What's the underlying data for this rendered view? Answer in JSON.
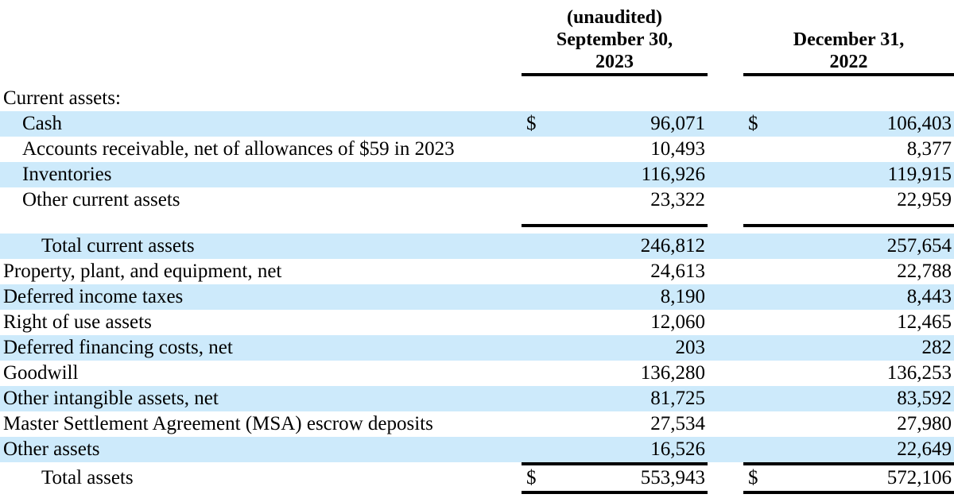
{
  "document": {
    "kind": "balance-sheet-assets-table",
    "unaudited_note": "(unaudited)",
    "currency_symbol": "$",
    "columns": [
      {
        "id": "sep30_2023",
        "line1": "September 30,",
        "line2": "2023"
      },
      {
        "id": "dec31_2022",
        "line1": "December 31,",
        "line2": "2022"
      }
    ],
    "rows": [
      {
        "style": "section",
        "label": "Current assets:",
        "indent": 0,
        "highlight": false,
        "show_dollar": false,
        "sep30_2023": "",
        "dec31_2022": ""
      },
      {
        "style": "normal",
        "label": "Cash",
        "indent": 1,
        "highlight": true,
        "show_dollar": true,
        "sep30_2023": "96,071",
        "dec31_2022": "106,403"
      },
      {
        "style": "normal",
        "label": "Accounts receivable, net of allowances of $59 in 2023",
        "indent": 1,
        "highlight": false,
        "show_dollar": false,
        "sep30_2023": "10,493",
        "dec31_2022": "8,377"
      },
      {
        "style": "normal",
        "label": "Inventories",
        "indent": 1,
        "highlight": true,
        "show_dollar": false,
        "sep30_2023": "116,926",
        "dec31_2022": "119,915"
      },
      {
        "style": "normal",
        "label": "Other current assets",
        "indent": 1,
        "highlight": false,
        "show_dollar": false,
        "sep30_2023": "23,322",
        "dec31_2022": "22,959"
      },
      {
        "style": "rule-spacer"
      },
      {
        "style": "subtotal",
        "label": "Total current assets",
        "indent": 2,
        "highlight": true,
        "show_dollar": false,
        "sep30_2023": "246,812",
        "dec31_2022": "257,654"
      },
      {
        "style": "normal",
        "label": "Property, plant, and equipment, net",
        "indent": 0,
        "highlight": false,
        "show_dollar": false,
        "sep30_2023": "24,613",
        "dec31_2022": "22,788"
      },
      {
        "style": "normal",
        "label": "Deferred income taxes",
        "indent": 0,
        "highlight": true,
        "show_dollar": false,
        "sep30_2023": "8,190",
        "dec31_2022": "8,443"
      },
      {
        "style": "normal",
        "label": "Right of use assets",
        "indent": 0,
        "highlight": false,
        "show_dollar": false,
        "sep30_2023": "12,060",
        "dec31_2022": "12,465"
      },
      {
        "style": "normal",
        "label": "Deferred financing costs, net",
        "indent": 0,
        "highlight": true,
        "show_dollar": false,
        "sep30_2023": "203",
        "dec31_2022": "282"
      },
      {
        "style": "normal",
        "label": "Goodwill",
        "indent": 0,
        "highlight": false,
        "show_dollar": false,
        "sep30_2023": "136,280",
        "dec31_2022": "136,253"
      },
      {
        "style": "normal",
        "label": "Other intangible assets, net",
        "indent": 0,
        "highlight": true,
        "show_dollar": false,
        "sep30_2023": "81,725",
        "dec31_2022": "83,592"
      },
      {
        "style": "normal",
        "label": "Master Settlement Agreement (MSA) escrow deposits",
        "indent": 0,
        "highlight": false,
        "show_dollar": false,
        "sep30_2023": "27,534",
        "dec31_2022": "27,980"
      },
      {
        "style": "normal",
        "label": "Other assets",
        "indent": 0,
        "highlight": true,
        "show_dollar": false,
        "sep30_2023": "16,526",
        "dec31_2022": "22,649"
      },
      {
        "style": "grand-total",
        "label": "Total assets",
        "indent": 2,
        "highlight": false,
        "show_dollar": true,
        "sep30_2023": "553,943",
        "dec31_2022": "572,106"
      }
    ]
  },
  "colors": {
    "row_highlight": "#cdeafb",
    "rule": "#000000",
    "text": "#000000",
    "background": "#ffffff"
  }
}
